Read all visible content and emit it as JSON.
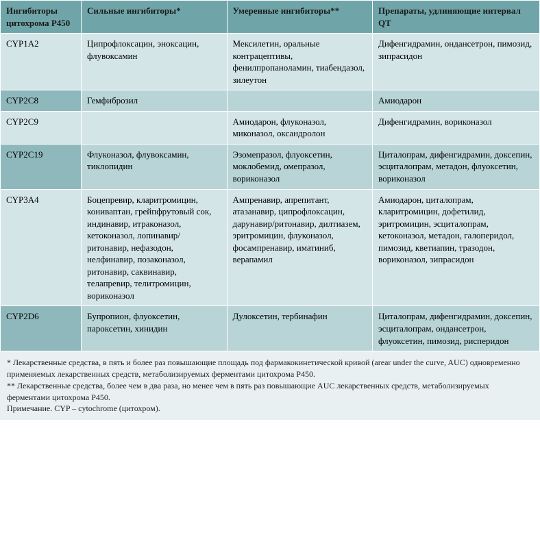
{
  "table": {
    "columns": [
      "Ингибиторы цитохрома P450",
      "Сильные ингибиторы*",
      "Умеренные ингибиторы**",
      "Препараты, удлиняющие интервал QT"
    ],
    "rows": [
      {
        "enzyme": "CYP1A2",
        "strong": "Ципрофлоксацин, эноксацин, флувоксамин",
        "moderate": "Мексилетин, оральные контрацептивы, фенилпропаноламин, тиабендазол, зилеутон",
        "qt": "Дифенгидрамин, ондансетрон, пимозид, зипрасидон"
      },
      {
        "enzyme": "CYP2C8",
        "strong": "Гемфиброзил",
        "moderate": "",
        "qt": "Амиодарон"
      },
      {
        "enzyme": "CYP2C9",
        "strong": "",
        "moderate": "Амиодарон, флуконазол, миконазол, оксандролон",
        "qt": "Дифенгидрамин, вориконазол"
      },
      {
        "enzyme": "CYP2C19",
        "strong": "Флуконазол, флувоксамин, тиклопидин",
        "moderate": "Эзомепразол, флуоксетин, моклобемид, омепразол, вориконазол",
        "qt": "Циталопрам, дифенгидрамин, доксепин, эсциталопрам, метадон, флуоксетин, вориконазол"
      },
      {
        "enzyme": "CYP3A4",
        "strong": "Боцепревир, кларитромицин, кониваптан, грейпфрутовый сок, индинавир, итраконазол, кетоконазол, лопинавир/ритонавир, нефазодон, нелфинавир, позаконазол, ритонавир, саквинавир, телапревир, телитромицин, вориконазол",
        "moderate": "Ампренавир, апрепитант, атазанавир, ципрофлоксацин, дарунавир/ритонавир, дилтиазем, эритромицин, флуконазол, фосампренавир, иматиниб, верапамил",
        "qt": "Амиодарон, циталопрам, кларитромицин, дофетилид, эритромицин, эсциталопрам, кетоконазол, метадон, галоперидол, пимозид, кветиапин, тразодон, вориконазол, зипрасидон"
      },
      {
        "enzyme": "CYP2D6",
        "strong": "Бупропион, флуоксетин, пароксетин, хинидин",
        "moderate": "Дулоксетин, тербинафин",
        "qt": "Циталопрам, дифенгидрамин, доксепин, эсциталопрам, ондансетрон, флуоксетин, пимозид, рисперидон"
      }
    ]
  },
  "footnotes": {
    "note1": "* Лекарственные средства, в пять и более раз повышающие площадь под фармакокинетической кривой (arear under the curve, AUC) одновременно применяемых лекарственных средств, метаболизируемых ферментами цитохрома P450.",
    "note2": "** Лекарственные средства, более чем в два раза, но менее чем в пять раз повышающие AUC лекарственных средств, метаболизируемых ферментами цитохрома P450.",
    "note3": "Примечание. CYP – cytochrome (цитохром)."
  },
  "styling": {
    "header_bg": "#6fa5a9",
    "row_odd_bg": "#d4e5e8",
    "row_even_bg": "#b8d4d7",
    "first_col_odd_bg": "#9fc4c7",
    "first_col_even_bg": "#8fb8bc",
    "footnote_bg": "#e8f0f1",
    "border_color": "#ffffff",
    "font_family": "Georgia, serif",
    "cell_fontsize": 13,
    "footnote_fontsize": 12,
    "col_widths_pct": [
      15,
      27,
      27,
      31
    ]
  }
}
